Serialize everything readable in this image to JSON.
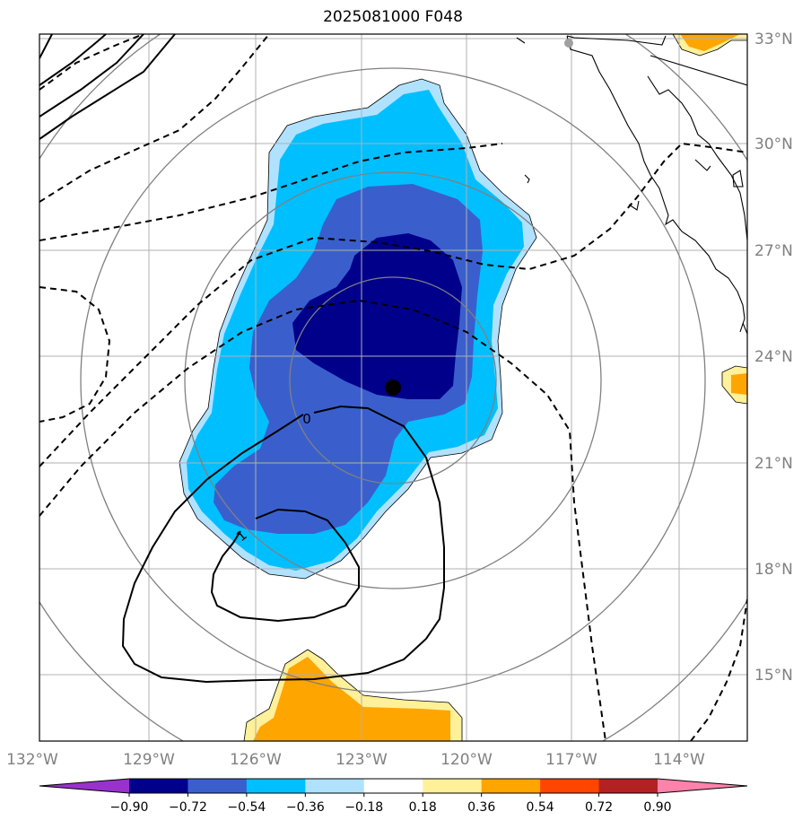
{
  "title": "2025081000 F048",
  "map": {
    "lon_ticks": [
      "132°W",
      "129°W",
      "126°W",
      "123°W",
      "120°W",
      "117°W",
      "114°W"
    ],
    "lat_ticks": [
      "33°N",
      "30°N",
      "27°N",
      "24°N",
      "21°N",
      "18°N",
      "15°N"
    ],
    "contour_labels": [
      "0",
      "1"
    ],
    "center_marker": "storm-center-dot",
    "field": "standardized anomaly (shaded) with dashed/solid contours"
  },
  "colorbar": {
    "tick_labels": [
      "−0.90",
      "−0.72",
      "−0.54",
      "−0.36",
      "−0.18",
      "0.18",
      "0.36",
      "0.54",
      "0.72",
      "0.90"
    ],
    "colors": [
      "#9932cc",
      "#00008b",
      "#3a5fcd",
      "#00bfff",
      "#b0e2ff",
      "#ffffff",
      "#fff09a",
      "#ffa500",
      "#ff4500",
      "#b22222",
      "#ff82ab"
    ]
  },
  "colors": {
    "grid": "#b0b0b0",
    "rings": "#808080",
    "tick_text": "#808080"
  }
}
